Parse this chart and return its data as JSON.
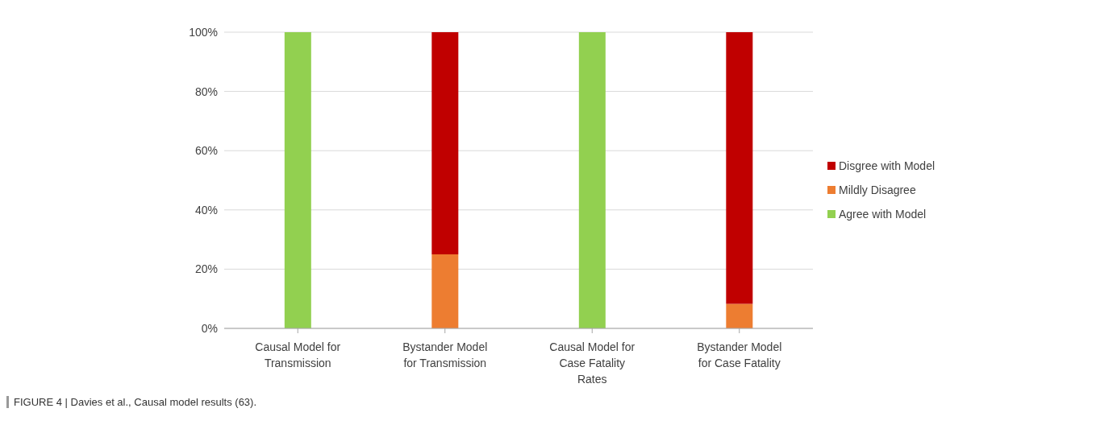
{
  "chart_data": {
    "type": "bar",
    "stacked": true,
    "categories": [
      "Causal Model for Transmission",
      "Bystander Model for Transmission",
      "Causal Model for Case Fatality Rates",
      "Bystander Model for Case Fatality"
    ],
    "series": [
      {
        "name": "Agree with Model",
        "color": "#92d050",
        "values": [
          100,
          0,
          100,
          0
        ]
      },
      {
        "name": "Mildly Disagree",
        "color": "#ed7d31",
        "values": [
          0,
          25,
          0,
          8.3
        ]
      },
      {
        "name": "Disgree with Model",
        "color": "#c00000",
        "values": [
          0,
          75,
          0,
          91.7
        ]
      }
    ],
    "ylim": [
      0,
      100
    ],
    "yticks": [
      {
        "value": 0,
        "label": "0%"
      },
      {
        "value": 20,
        "label": "20%"
      },
      {
        "value": 40,
        "label": "40%"
      },
      {
        "value": 60,
        "label": "60%"
      },
      {
        "value": 80,
        "label": "80%"
      },
      {
        "value": 100,
        "label": "100%"
      }
    ],
    "grid": "y",
    "legend": "right",
    "annotations": [
      "FIGURE 4 | Davies et al., Causal model results (63)."
    ]
  }
}
